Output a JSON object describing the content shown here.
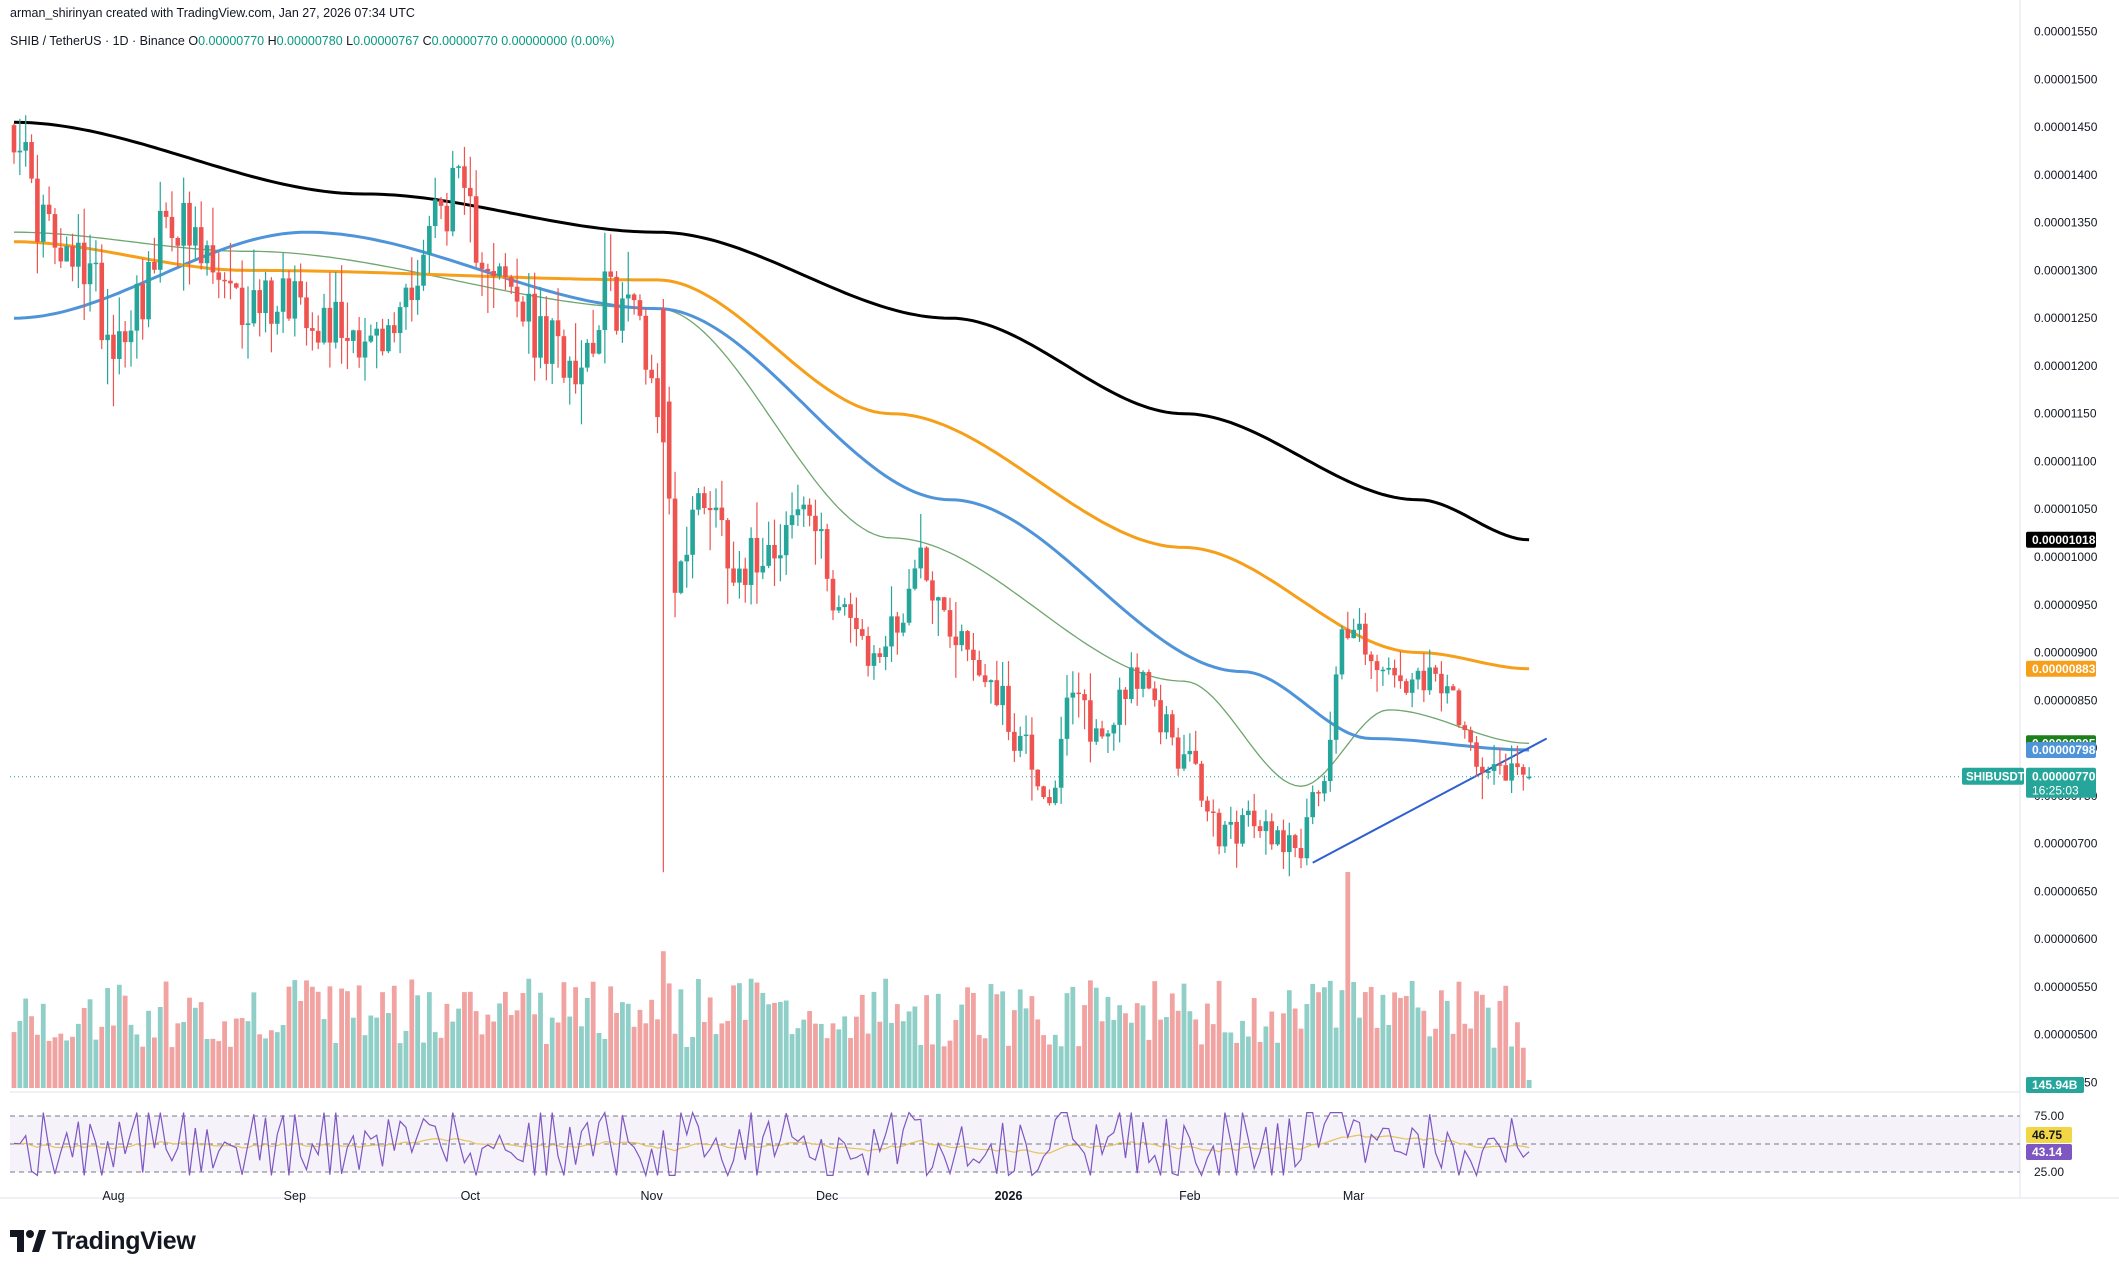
{
  "header": {
    "author_line": "arman_shirinyan created with TradingView.com, Jan 27, 2026 07:34 UTC",
    "symbol": "SHIB / TetherUS · 1D · Binance",
    "ohlc": [
      {
        "k": "O",
        "v": "0.00000770"
      },
      {
        "k": "H",
        "v": "0.00000780"
      },
      {
        "k": "L",
        "v": "0.00000767"
      },
      {
        "k": "C",
        "v": "0.00000770"
      }
    ],
    "change": "0.00000000 (0.00%)"
  },
  "footer": {
    "brand": "TradingView"
  },
  "colors": {
    "up": "#26a69a",
    "down": "#ef5350",
    "vol_up": "#8fcfc8",
    "vol_down": "#f1a3a1",
    "ma_black": "#000000",
    "ma_orange": "#f59f1a",
    "ma_blue": "#4f94d9",
    "ma_green": "#6ea66e",
    "trendline": "#2f5fd0",
    "rsi": "#7e57c2",
    "rsi_ma": "#e6c35c"
  },
  "chart_data": {
    "type": "candlestick",
    "symbol": "SHIBUSDT",
    "interval": "1D",
    "y_range": [
      4.4e-06,
      1.56e-05
    ],
    "price_ticks": [
      "0.00001550",
      "0.00001500",
      "0.00001450",
      "0.00001400",
      "0.00001350",
      "0.00001300",
      "0.00001250",
      "0.00001200",
      "0.00001150",
      "0.00001100",
      "0.00001050",
      "0.00001000",
      "0.00000950",
      "0.00000900",
      "0.00000850",
      "0.00000800",
      "0.00000750",
      "0.00000700",
      "0.00000650",
      "0.00000600",
      "0.00000550",
      "0.00000500",
      "0.00000450"
    ],
    "time_axis": [
      "Aug",
      "Sep",
      "Oct",
      "Nov",
      "Dec",
      "2026",
      "Feb",
      "Mar"
    ],
    "price_labels": [
      {
        "label": "0.00001018",
        "value": 1.018e-05,
        "color": "#000000",
        "name": "ma-black"
      },
      {
        "label": "0.00000883",
        "value": 8.83e-06,
        "color": "#f59f1a",
        "name": "ma-orange"
      },
      {
        "label": "0.00000805",
        "value": 8.05e-06,
        "color": "#1b7f1b",
        "name": "ma-green"
      },
      {
        "label": "0.00000798",
        "value": 7.98e-06,
        "color": "#4f94d9",
        "name": "ma-blue"
      }
    ],
    "last_price": {
      "symbol": "SHIBUSDT",
      "value": "0.00000770",
      "countdown": "16:25:03"
    },
    "volume_label": "145.94B",
    "rsi": {
      "ticks": [
        "75.00",
        "25.00"
      ],
      "value": "43.14",
      "ma_value": "46.75"
    },
    "anchors": {
      "closes": [
        [
          0,
          1.46e-05
        ],
        [
          4,
          1.36e-05
        ],
        [
          9,
          1.3e-05
        ],
        [
          12,
          1.31e-05
        ],
        [
          17,
          1.23e-05
        ],
        [
          22,
          1.28e-05
        ],
        [
          27,
          1.36e-05
        ],
        [
          32,
          1.31e-05
        ],
        [
          38,
          1.26e-05
        ],
        [
          43,
          1.27e-05
        ],
        [
          48,
          1.28e-05
        ],
        [
          53,
          1.25e-05
        ],
        [
          58,
          1.24e-05
        ],
        [
          63,
          1.22e-05
        ],
        [
          69,
          1.3e-05
        ],
        [
          72,
          1.36e-05
        ],
        [
          75,
          1.38e-05
        ],
        [
          80,
          1.33e-05
        ],
        [
          85,
          1.27e-05
        ],
        [
          91,
          1.22e-05
        ],
        [
          97,
          1.21e-05
        ],
        [
          101,
          1.27e-05
        ],
        [
          106,
          1.26e-05
        ],
        [
          111,
          1.15e-05
        ],
        [
          113,
          9.8e-06
        ],
        [
          118,
          1.07e-05
        ],
        [
          124,
          9.9e-06
        ],
        [
          130,
          1.02e-05
        ],
        [
          135,
          1.05e-05
        ],
        [
          141,
          9.6e-06
        ],
        [
          146,
          8.9e-06
        ],
        [
          150,
          9.2e-06
        ],
        [
          155,
          1e-05
        ],
        [
          160,
          9.3e-06
        ],
        [
          166,
          8.8e-06
        ],
        [
          172,
          8.1e-06
        ],
        [
          177,
          7.5e-06
        ],
        [
          181,
          8.5e-06
        ],
        [
          186,
          8.1e-06
        ],
        [
          191,
          8.8e-06
        ],
        [
          196,
          8.3e-06
        ],
        [
          201,
          7.8e-06
        ],
        [
          206,
          7.1e-06
        ],
        [
          211,
          7.2e-06
        ],
        [
          216,
          7.1e-06
        ],
        [
          220,
          7e-06
        ],
        [
          224,
          7.8e-06
        ],
        [
          227,
          9.2e-06
        ],
        [
          230,
          9.2e-06
        ],
        [
          235,
          8.7e-06
        ],
        [
          240,
          8.6e-06
        ],
        [
          244,
          8.7e-06
        ],
        [
          248,
          8.1e-06
        ],
        [
          252,
          7.9e-06
        ],
        [
          256,
          7.8e-06
        ],
        [
          259,
          7.7e-06
        ]
      ],
      "ma_black": [
        [
          0,
          1.455e-05
        ],
        [
          60,
          1.38e-05
        ],
        [
          110,
          1.34e-05
        ],
        [
          160,
          1.25e-05
        ],
        [
          200,
          1.15e-05
        ],
        [
          240,
          1.06e-05
        ],
        [
          259,
          1.018e-05
        ]
      ],
      "ma_orange": [
        [
          0,
          1.33e-05
        ],
        [
          40,
          1.3e-05
        ],
        [
          110,
          1.29e-05
        ],
        [
          150,
          1.15e-05
        ],
        [
          200,
          1.01e-05
        ],
        [
          240,
          9e-06
        ],
        [
          259,
          8.83e-06
        ]
      ],
      "ma_blue": [
        [
          0,
          1.25e-05
        ],
        [
          50,
          1.34e-05
        ],
        [
          110,
          1.26e-05
        ],
        [
          160,
          1.06e-05
        ],
        [
          210,
          8.8e-06
        ],
        [
          232,
          8.1e-06
        ],
        [
          259,
          7.98e-06
        ]
      ],
      "ma_green": [
        [
          0,
          1.34e-05
        ],
        [
          40,
          1.32e-05
        ],
        [
          110,
          1.26e-05
        ],
        [
          150,
          1.02e-05
        ],
        [
          200,
          8.7e-06
        ],
        [
          220,
          7.6e-06
        ],
        [
          235,
          8.4e-06
        ],
        [
          259,
          8.05e-06
        ]
      ],
      "trendline": [
        [
          222,
          6.8e-06
        ],
        [
          262,
          8.1e-06
        ]
      ],
      "events": [
        {
          "i": 111,
          "low": 6.7e-06,
          "vol_mult": 1.55
        },
        {
          "i": 228,
          "vol_mult": 1.6
        }
      ]
    }
  }
}
